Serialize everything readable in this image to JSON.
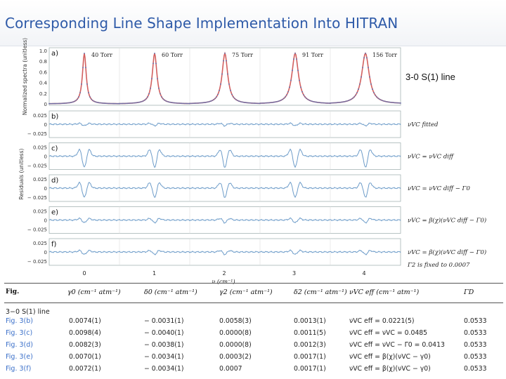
{
  "slide": {
    "title": "Corresponding Line Shape Implementation Into HITRAN",
    "side_label": "3-0 S(1) line"
  },
  "figure": {
    "panel_a": {
      "letter": "a)",
      "ylabel": "Normalized spectra (unitless)",
      "yticks": [
        "1.0",
        "0.8",
        "0.6",
        "0.4",
        "0.2",
        "0"
      ],
      "pressures": [
        "40 Torr",
        "60 Torr",
        "75 Torr",
        "91 Torr",
        "156 Torr"
      ]
    },
    "residuals_label": "Residuals (unitless)",
    "residual_ticks": [
      "0.025",
      "0",
      "− 0.025"
    ],
    "panels": [
      {
        "letter": "b)",
        "label": "νVC fitted",
        "amp": 0.12
      },
      {
        "letter": "c)",
        "label": "νVC = νVC diff",
        "amp": 0.9
      },
      {
        "letter": "d)",
        "label": "νVC = νVC diff − Γ0",
        "amp": 0.75
      },
      {
        "letter": "e)",
        "label": "νVC = β(χ)(νVC diff − Γ0)",
        "amp": 0.22
      },
      {
        "letter": "f)",
        "label": "νVC = β(χ)(νVC diff − Γ0)",
        "amp": 0.2
      }
    ],
    "f_note": "Γ2 is fixed to 0.0007",
    "xticks": [
      "0",
      "1",
      "2",
      "3",
      "4"
    ],
    "xlabel": "ν (cm⁻¹)"
  },
  "table": {
    "headers": [
      "Fig.",
      "γ0 (cm⁻¹ atm⁻¹)",
      "δ0 (cm⁻¹ atm⁻¹)",
      "γ2 (cm⁻¹ atm⁻¹)",
      "δ2 (cm⁻¹ atm⁻¹)",
      "νVC eff (cm⁻¹ atm⁻¹)",
      "ΓD"
    ],
    "group_label": "3−0 S(1) line",
    "rows": [
      {
        "fig": "Fig. 3(b)",
        "g0": "0.0074(1)",
        "d0": "− 0.0031(1)",
        "g2": "0.0058(3)",
        "d2": "0.0013(1)",
        "nu": "νVC eff = 0.0221(5)",
        "gd": "0.0533"
      },
      {
        "fig": "Fig. 3(c)",
        "g0": "0.0098(4)",
        "d0": "− 0.0040(1)",
        "g2": "0.0000(8)",
        "d2": "0.0011(5)",
        "nu": "νVC eff = νVC = 0.0485",
        "gd": "0.0533"
      },
      {
        "fig": "Fig. 3(d)",
        "g0": "0.0082(3)",
        "d0": "− 0.0038(1)",
        "g2": "0.0000(8)",
        "d2": "0.0012(3)",
        "nu": "νVC eff = νVC − Γ0 = 0.0413",
        "gd": "0.0533"
      },
      {
        "fig": "Fig. 3(e)",
        "g0": "0.0070(1)",
        "d0": "− 0.0034(1)",
        "g2": "0.0003(2)",
        "d2": "0.0017(1)",
        "nu": "νVC eff = β(χ)(νVC − γ0)",
        "gd": "0.0533"
      },
      {
        "fig": "Fig. 3(f)",
        "g0": "0.0072(1)",
        "d0": "− 0.0034(1)",
        "g2": "0.0007",
        "d2": "0.0017(1)",
        "nu": "νVC eff = β(χ)(νVC − γ0)",
        "gd": "0.0533"
      }
    ]
  }
}
